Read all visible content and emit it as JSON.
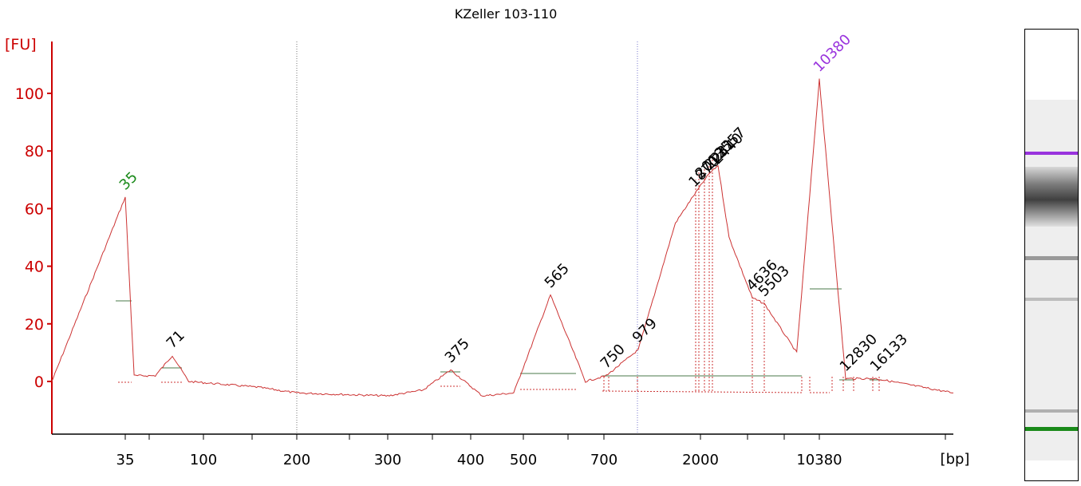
{
  "chart_data": {
    "type": "line",
    "title": "KZeller 103-110",
    "ylabel": "[FU]",
    "xlabel": "[bp]",
    "ylim": [
      -10,
      110
    ],
    "y_ticks": [
      0,
      20,
      40,
      60,
      80,
      100
    ],
    "x_tick_labels": [
      "35",
      "100",
      "200",
      "300",
      "400",
      "500",
      "700",
      "2000",
      "10380"
    ],
    "series": [
      {
        "values": [
          {
            "x": 30,
            "y": 0
          },
          {
            "x": 35,
            "y": 64
          },
          {
            "x": 40,
            "y": 2
          },
          {
            "x": 55,
            "y": 2
          },
          {
            "x": 71,
            "y": 9
          },
          {
            "x": 85,
            "y": 0
          },
          {
            "x": 150,
            "y": -2
          },
          {
            "x": 200,
            "y": -4
          },
          {
            "x": 300,
            "y": -5
          },
          {
            "x": 340,
            "y": -3
          },
          {
            "x": 375,
            "y": 4
          },
          {
            "x": 420,
            "y": -5
          },
          {
            "x": 480,
            "y": -4
          },
          {
            "x": 565,
            "y": 30
          },
          {
            "x": 650,
            "y": 0
          },
          {
            "x": 750,
            "y": 2
          },
          {
            "x": 979,
            "y": 11
          },
          {
            "x": 1500,
            "y": 55
          },
          {
            "x": 1870,
            "y": 65
          },
          {
            "x": 2200,
            "y": 72
          },
          {
            "x": 2440,
            "y": 75
          },
          {
            "x": 3000,
            "y": 50
          },
          {
            "x": 4636,
            "y": 29
          },
          {
            "x": 5503,
            "y": 27
          },
          {
            "x": 8000,
            "y": 10
          },
          {
            "x": 10380,
            "y": 105
          },
          {
            "x": 12830,
            "y": 1
          },
          {
            "x": 16133,
            "y": 1
          },
          {
            "x": 20000,
            "y": -4
          }
        ]
      }
    ],
    "peak_labels": [
      {
        "text": "35",
        "x": 35,
        "y": 64,
        "color": "#1a8a1a"
      },
      {
        "text": "71",
        "x": 71,
        "y": 9,
        "color": "#000000"
      },
      {
        "text": "375",
        "x": 375,
        "y": 4,
        "color": "#000000"
      },
      {
        "text": "565",
        "x": 565,
        "y": 30,
        "color": "#000000"
      },
      {
        "text": "750",
        "x": 750,
        "y": 2,
        "color": "#000000"
      },
      {
        "text": "979",
        "x": 979,
        "y": 11,
        "color": "#000000"
      },
      {
        "text": "1870",
        "x": 1870,
        "y": 65,
        "color": "#000000"
      },
      {
        "text": "2013",
        "x": 2013,
        "y": 68,
        "color": "#000000"
      },
      {
        "text": "2231",
        "x": 2231,
        "y": 71,
        "color": "#000000"
      },
      {
        "text": "2440",
        "x": 2440,
        "y": 73,
        "color": "#000000"
      },
      {
        "text": "2557",
        "x": 2557,
        "y": 75,
        "color": "#000000"
      },
      {
        "text": "4636",
        "x": 4636,
        "y": 29,
        "color": "#000000"
      },
      {
        "text": "5503",
        "x": 5503,
        "y": 27,
        "color": "#000000"
      },
      {
        "text": "10380",
        "x": 10380,
        "y": 105,
        "color": "#9933dd"
      },
      {
        "text": "12830",
        "x": 12830,
        "y": 1,
        "color": "#000000"
      },
      {
        "text": "16133",
        "x": 16133,
        "y": 1,
        "color": "#000000"
      }
    ],
    "marker_colors": {
      "lower": "#1a8a1a",
      "upper": "#9933dd"
    },
    "line_color": "#cc3333",
    "axis_color": "#cc0000",
    "grid": false
  }
}
